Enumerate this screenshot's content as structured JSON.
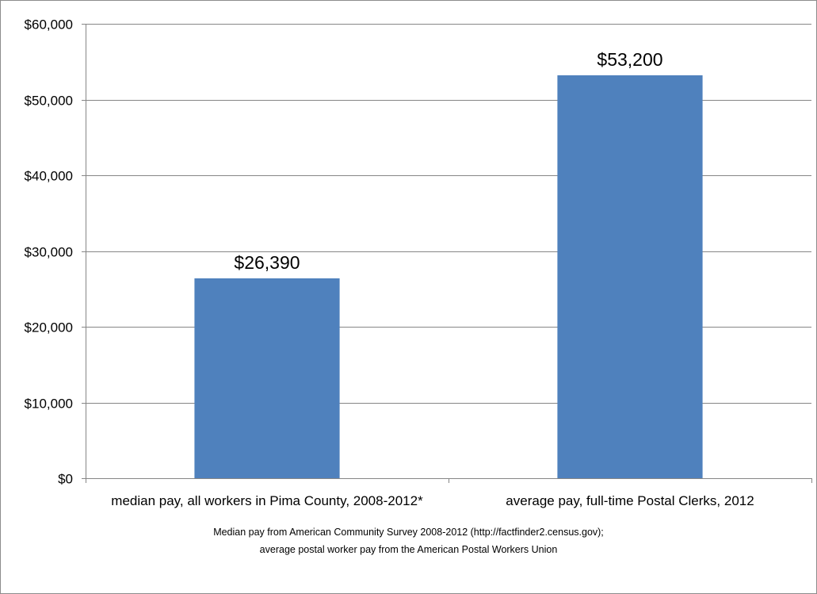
{
  "chart_data": {
    "type": "bar",
    "categories": [
      "median pay, all workers in Pima County, 2008-2012*",
      "average pay, full-time Postal Clerks, 2012"
    ],
    "values": [
      26390,
      53200
    ],
    "data_labels": [
      "$26,390",
      "$53,200"
    ],
    "ylim": [
      0,
      60000
    ],
    "y_ticks": [
      0,
      10000,
      20000,
      30000,
      40000,
      50000,
      60000
    ],
    "y_tick_labels": [
      "$0",
      "$10,000",
      "$20,000",
      "$30,000",
      "$40,000",
      "$50,000",
      "$60,000"
    ],
    "grid": true,
    "legend": "none",
    "bar_color": "#4f81bd",
    "grid_color": "#868686",
    "title": "",
    "xlabel": "",
    "ylabel": "",
    "annotations": [
      "Median pay from American Community Survey 2008-2012 (http://factfinder2.census.gov);",
      "average postal worker pay from the American Postal Workers Union"
    ]
  }
}
